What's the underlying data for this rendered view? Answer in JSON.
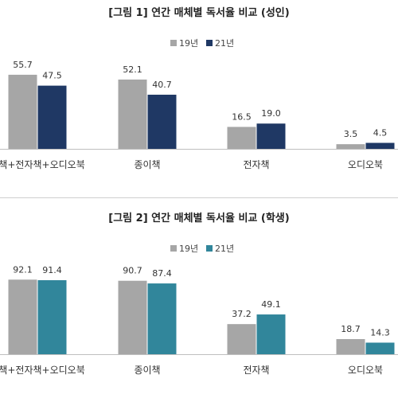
{
  "chart_data": [
    {
      "type": "bar",
      "title": "[그림 1] 연간 매체별 독서율 비교 (성인)",
      "unit": "(",
      "categories": [
        "종이책+전자책+오디오북",
        "종이책",
        "전자책",
        "오디오북"
      ],
      "categories_visible": [
        "이책+전자책+오디오북",
        "종이책",
        "전자책",
        "오디오북"
      ],
      "series": [
        {
          "name": "19년",
          "values": [
            55.7,
            52.1,
            16.5,
            3.5
          ],
          "color": "#a6a6a6"
        },
        {
          "name": "21년",
          "values": [
            47.5,
            40.7,
            19.0,
            4.5
          ],
          "color": "#1f3864"
        }
      ],
      "value_labels": [
        [
          "55.7",
          "52.1",
          "16.5",
          "3.5"
        ],
        [
          "47.5",
          "40.7",
          "19.0",
          "4.5"
        ]
      ],
      "ylim": [
        0,
        70
      ],
      "legend": "top-center"
    },
    {
      "type": "bar",
      "title": "[그림 2] 연간 매체별 독서율 비교 (학생)",
      "unit": "(",
      "categories": [
        "종이책+전자책+오디오북",
        "종이책",
        "전자책",
        "오디오북"
      ],
      "categories_visible": [
        "이책+전자책+오디오북",
        "종이책",
        "전자책",
        "오디오북"
      ],
      "series": [
        {
          "name": "19년",
          "values": [
            92.1,
            90.7,
            37.2,
            18.7
          ],
          "color": "#a6a6a6"
        },
        {
          "name": "21년",
          "values": [
            91.4,
            87.4,
            49.1,
            14.3
          ],
          "color": "#31869b"
        }
      ],
      "value_labels": [
        [
          "92.1",
          "90.7",
          "37.2",
          "18.7"
        ],
        [
          "91.4",
          "87.4",
          "49.1",
          "14.3"
        ]
      ],
      "ylim": [
        0,
        115
      ],
      "legend": "top-center"
    }
  ]
}
